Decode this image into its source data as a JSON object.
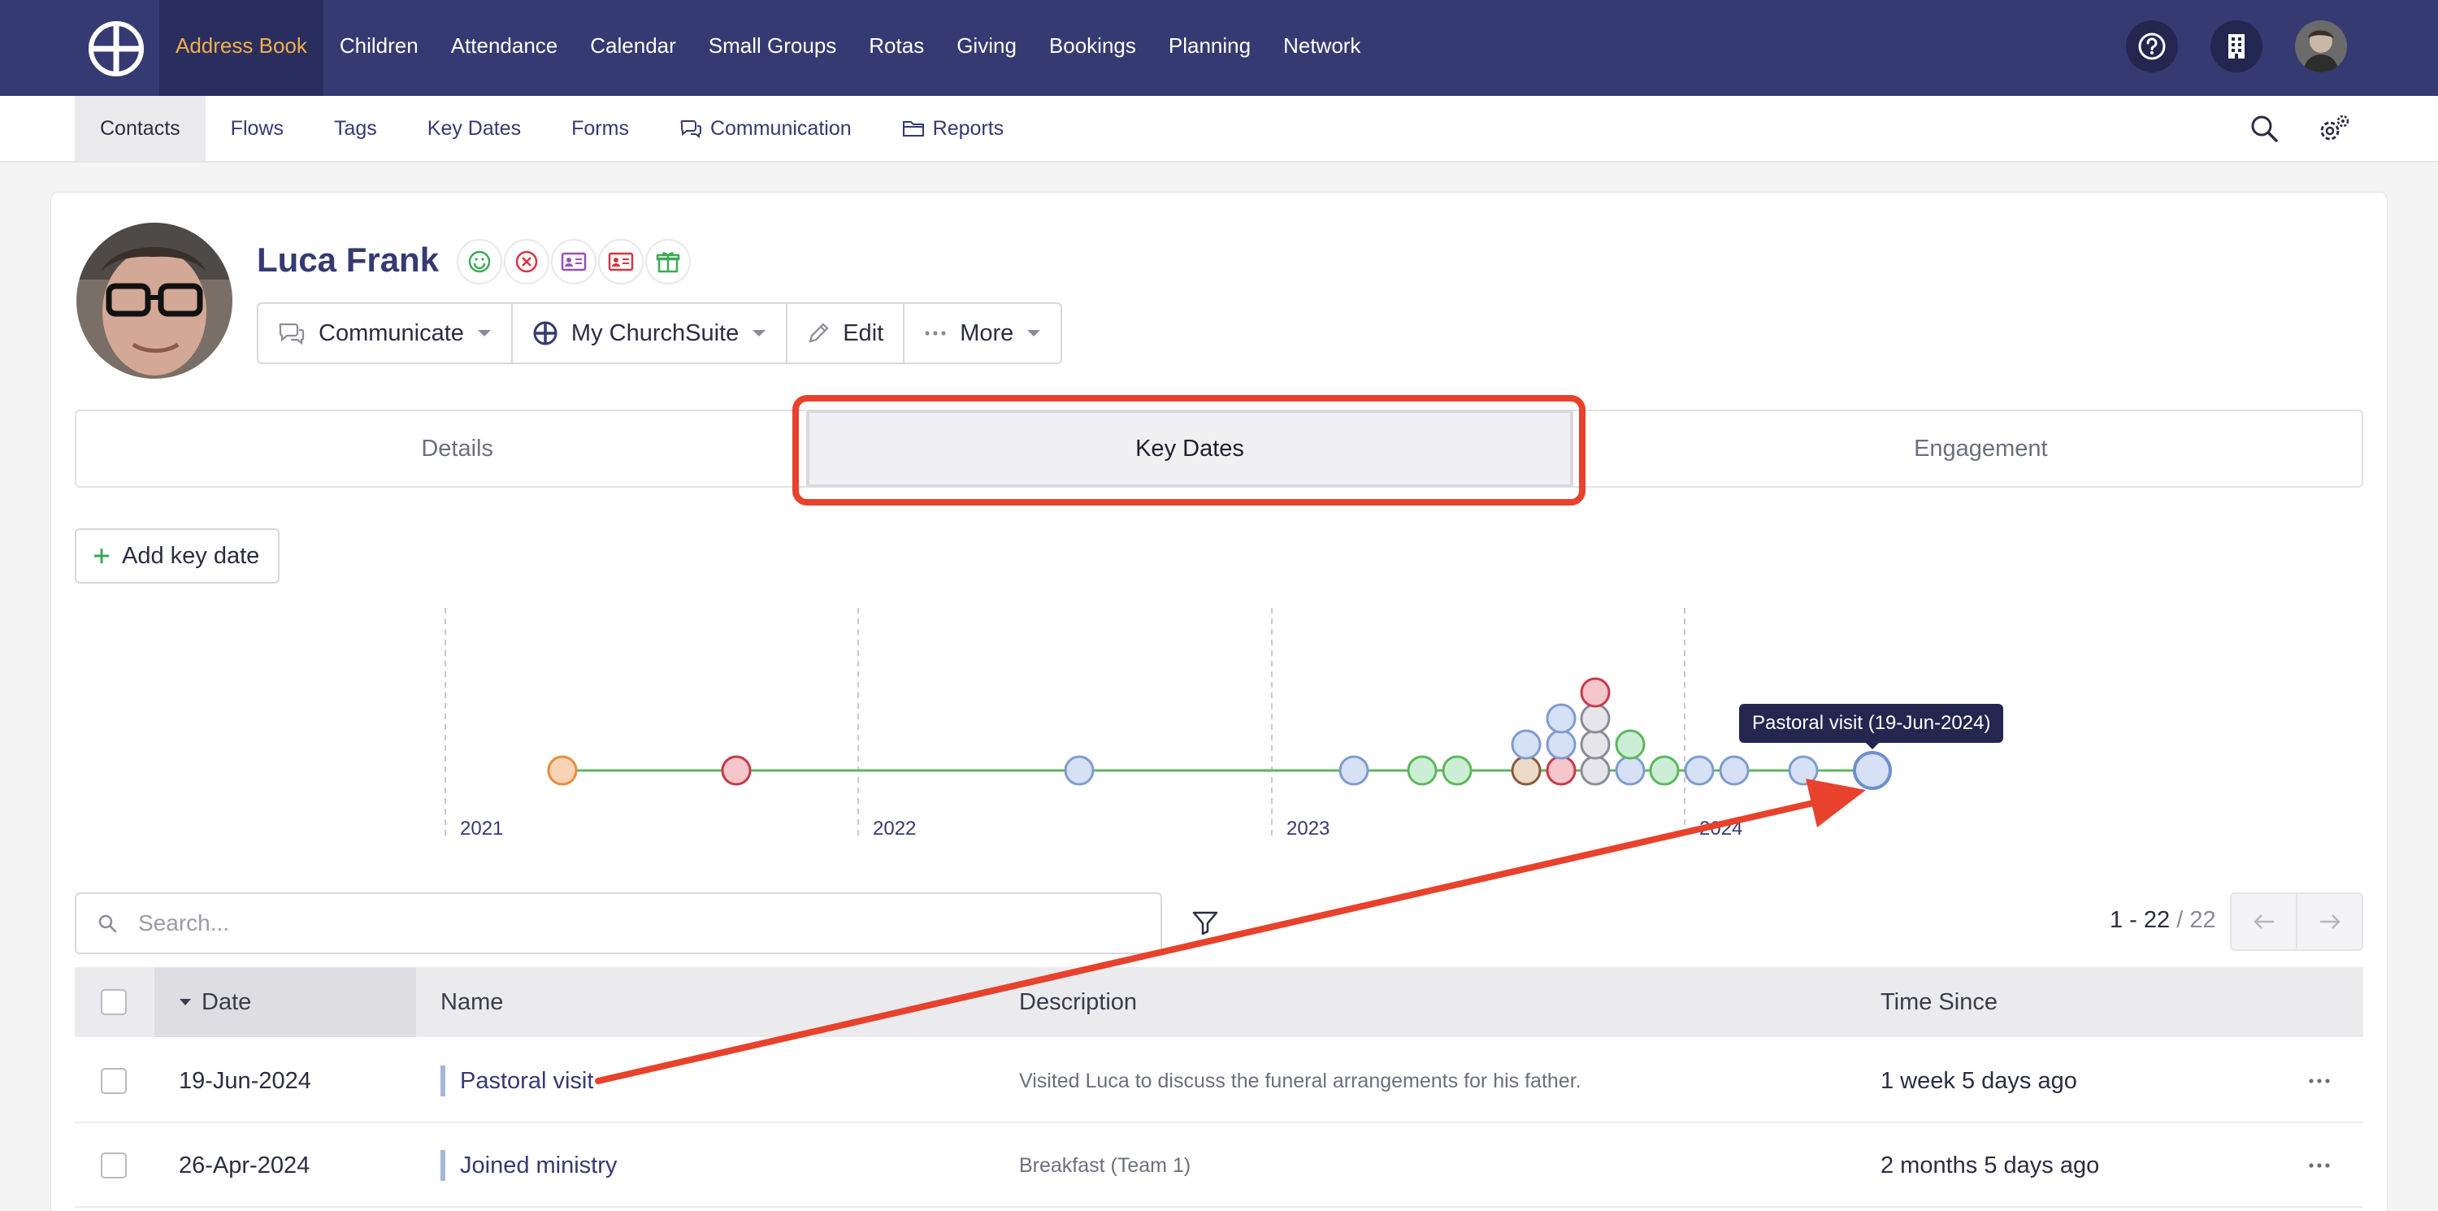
{
  "topnav": {
    "items": [
      {
        "label": "Address Book",
        "active": true
      },
      {
        "label": "Children"
      },
      {
        "label": "Attendance"
      },
      {
        "label": "Calendar"
      },
      {
        "label": "Small Groups"
      },
      {
        "label": "Rotas"
      },
      {
        "label": "Giving"
      },
      {
        "label": "Bookings"
      },
      {
        "label": "Planning"
      },
      {
        "label": "Network"
      }
    ],
    "icons": [
      "help-icon",
      "building-icon",
      "user-avatar"
    ]
  },
  "subnav": {
    "items": [
      {
        "label": "Contacts",
        "active": true
      },
      {
        "label": "Flows"
      },
      {
        "label": "Tags"
      },
      {
        "label": "Key Dates"
      },
      {
        "label": "Forms"
      },
      {
        "label": "Communication",
        "icon": "chat-icon"
      },
      {
        "label": "Reports",
        "icon": "folder-icon"
      }
    ],
    "icons": [
      "search-icon",
      "settings-icon"
    ]
  },
  "profile": {
    "name": "Luca Frank",
    "status_icons": [
      "smile-icon",
      "cancel-icon",
      "id-card-icon",
      "id-card-red-icon",
      "gift-icon"
    ],
    "actions": {
      "communicate": "Communicate",
      "mychurchsuite": "My ChurchSuite",
      "edit": "Edit",
      "more": "More"
    }
  },
  "tabs": {
    "details": "Details",
    "key_dates": "Key Dates",
    "engagement": "Engagement",
    "active": "Key Dates"
  },
  "add_key_date": "Add key date",
  "timeline": {
    "years": [
      "2021",
      "2022",
      "2023",
      "2024"
    ],
    "tooltip": "Pastoral visit (19-Jun-2024)",
    "colors": {
      "line": "#5cb85c",
      "orange": "#f4c9a8",
      "red": "#f5c6cb",
      "blue": "#cfdcf3",
      "green": "#c9ecd2",
      "brown": "#e8d3c2",
      "grey": "#e4e4e8"
    }
  },
  "search": {
    "placeholder": "Search..."
  },
  "pagination": {
    "range": "1 - 22",
    "total": "/ 22"
  },
  "table": {
    "headers": {
      "date": "Date",
      "name": "Name",
      "description": "Description",
      "time_since": "Time Since"
    },
    "rows": [
      {
        "date": "19-Jun-2024",
        "name": "Pastoral visit",
        "description": "Visited Luca to discuss the funeral arrangements for his father.",
        "time_since": "1 week 5 days ago"
      },
      {
        "date": "26-Apr-2024",
        "name": "Joined ministry",
        "description": "Breakfast (Team 1)",
        "time_since": "2 months 5 days ago"
      }
    ]
  },
  "annotation_color": "#e8412c"
}
